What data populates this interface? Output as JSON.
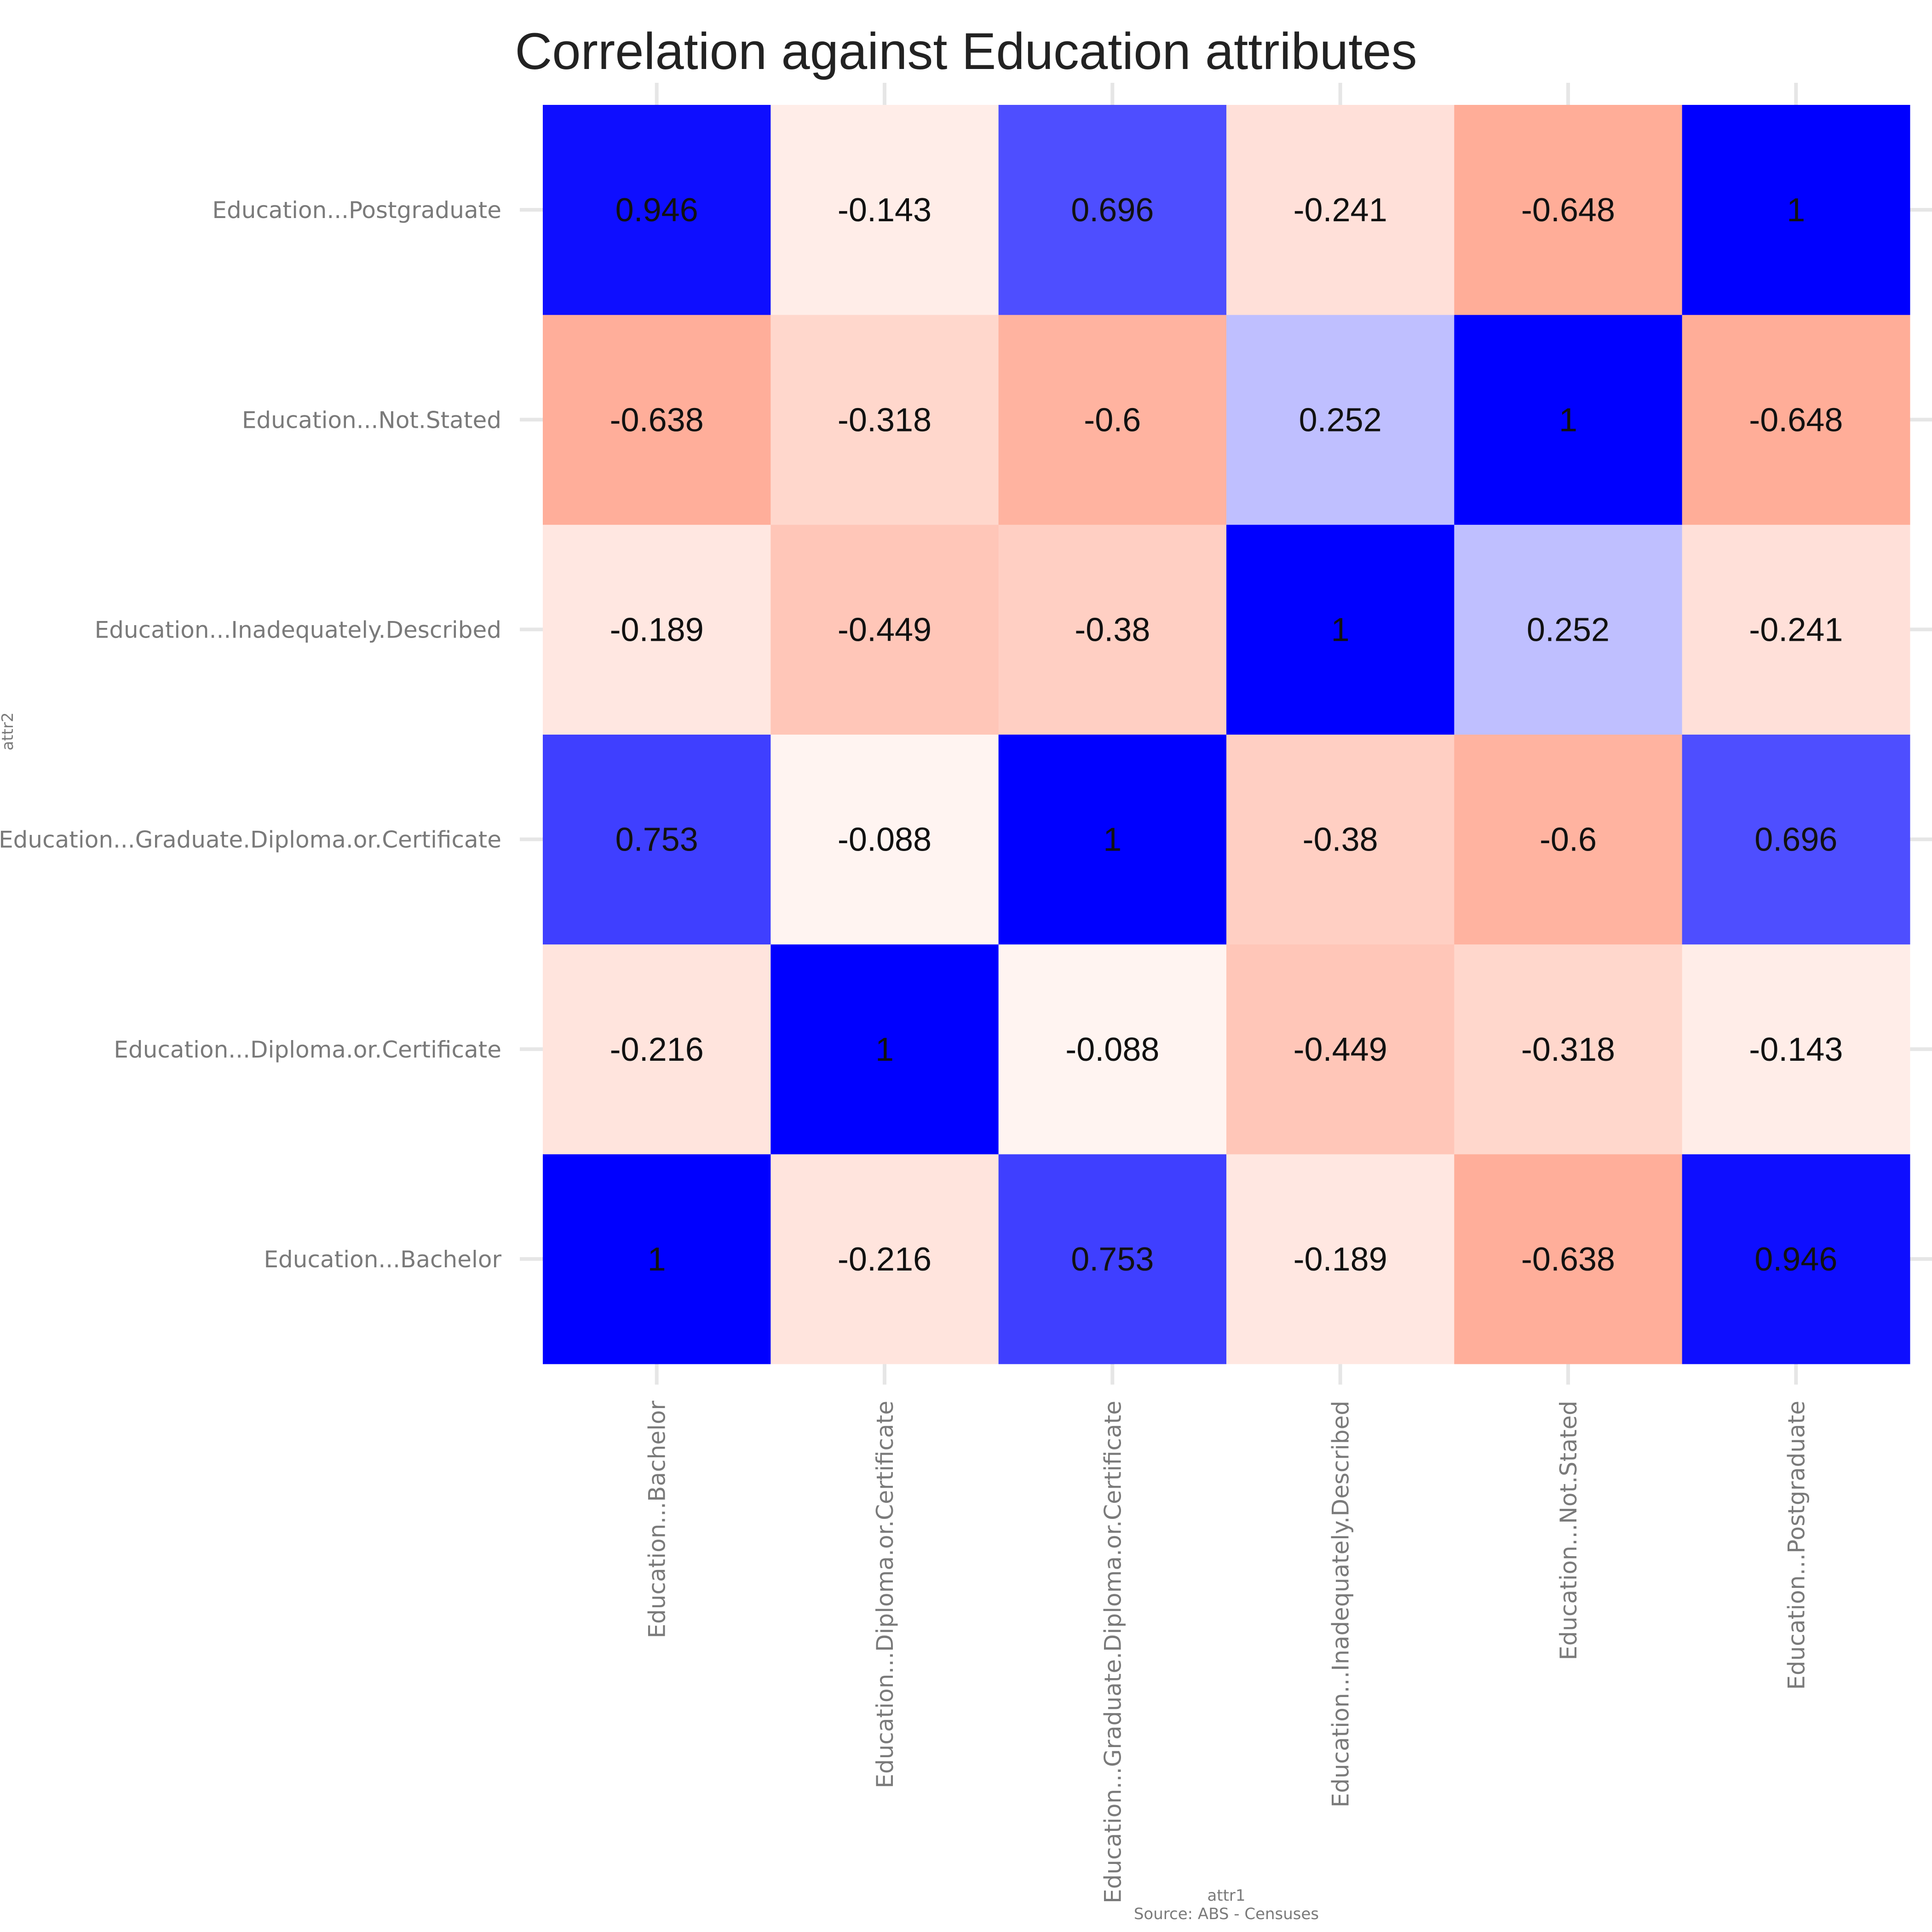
{
  "chart_data": {
    "type": "heatmap",
    "title": "Correlation against Education attributes",
    "xlabel": "attr1",
    "ylabel": "attr2",
    "caption": "Source: ABS - Censuses",
    "x_categories": [
      "Education...Bachelor",
      "Education...Diploma.or.Certificate",
      "Education...Graduate.Diploma.or.Certificate",
      "Education...Inadequately.Described",
      "Education...Not.Stated",
      "Education...Postgraduate"
    ],
    "y_categories": [
      "Education...Bachelor",
      "Education...Diploma.or.Certificate",
      "Education...Graduate.Diploma.or.Certificate",
      "Education...Inadequately.Described",
      "Education...Not.Stated",
      "Education...Postgraduate"
    ],
    "values": [
      [
        1,
        -0.216,
        0.753,
        -0.189,
        -0.638,
        0.946
      ],
      [
        -0.216,
        1,
        -0.088,
        -0.449,
        -0.318,
        -0.143
      ],
      [
        0.753,
        -0.088,
        1,
        -0.38,
        -0.6,
        0.696
      ],
      [
        -0.189,
        -0.449,
        -0.38,
        1,
        0.252,
        -0.241
      ],
      [
        -0.638,
        -0.318,
        -0.6,
        0.252,
        1,
        -0.648
      ],
      [
        0.946,
        -0.143,
        0.696,
        -0.241,
        -0.648,
        1
      ]
    ],
    "value_labels": [
      [
        "1",
        "-0.216",
        "0.753",
        "-0.189",
        "-0.638",
        "0.946"
      ],
      [
        "-0.216",
        "1",
        "-0.088",
        "-0.449",
        "-0.318",
        "-0.143"
      ],
      [
        "0.753",
        "-0.088",
        "1",
        "-0.38",
        "-0.6",
        "0.696"
      ],
      [
        "-0.189",
        "-0.449",
        "-0.38",
        "1",
        "0.252",
        "-0.241"
      ],
      [
        "-0.638",
        "-0.318",
        "-0.6",
        "0.252",
        "1",
        "-0.648"
      ],
      [
        "0.946",
        "-0.143",
        "0.696",
        "-0.241",
        "-0.648",
        "1"
      ]
    ],
    "color_scale": {
      "low": "#ff8060",
      "mid": "#ffffff",
      "high": "#0000ff",
      "domain": [
        -1,
        1
      ]
    },
    "grid": true,
    "legend": "none"
  }
}
